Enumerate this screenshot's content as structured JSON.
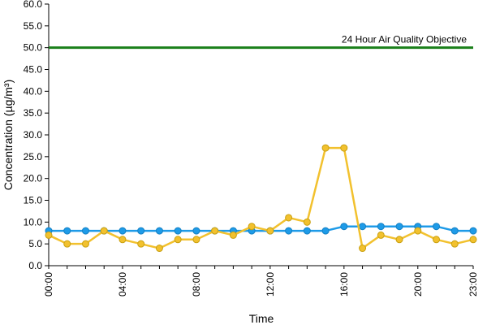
{
  "chart_data": {
    "type": "line",
    "xlabel": "Time",
    "ylabel": "Concentration (µg/m³)",
    "ylim": [
      0,
      60
    ],
    "y_ticks": [
      "0.0",
      "5.0",
      "10.0",
      "15.0",
      "20.0",
      "25.0",
      "30.0",
      "35.0",
      "40.0",
      "45.0",
      "50.0",
      "55.0",
      "60.0"
    ],
    "x_ticks": [
      {
        "hour": 0,
        "label": "00:00"
      },
      {
        "hour": 4,
        "label": "04:00"
      },
      {
        "hour": 8,
        "label": "08:00"
      },
      {
        "hour": 12,
        "label": "12:00"
      },
      {
        "hour": 16,
        "label": "16:00"
      },
      {
        "hour": 20,
        "label": "20:00"
      },
      {
        "hour": 23,
        "label": "23:00"
      }
    ],
    "x_hours": [
      0,
      1,
      2,
      3,
      4,
      5,
      6,
      7,
      8,
      9,
      10,
      11,
      12,
      13,
      14,
      15,
      16,
      17,
      18,
      19,
      20,
      21,
      22,
      23
    ],
    "series": [
      {
        "color": "#F2C12E",
        "values": [
          7,
          5,
          5,
          8,
          6,
          5,
          4,
          6,
          6,
          8,
          7,
          9,
          8,
          11,
          10,
          27,
          27,
          4,
          7,
          6,
          8,
          6,
          5,
          6
        ]
      },
      {
        "color": "#1E9BE8",
        "values": [
          8,
          8,
          8,
          8,
          8,
          8,
          8,
          8,
          8,
          8,
          8,
          8,
          8,
          8,
          8,
          8,
          9,
          9,
          9,
          9,
          9,
          9,
          8,
          8
        ]
      }
    ],
    "reference_line": {
      "value": 50,
      "label": "24 Hour Air Quality Objective",
      "color": "#1A7F1A"
    },
    "grid": false
  }
}
